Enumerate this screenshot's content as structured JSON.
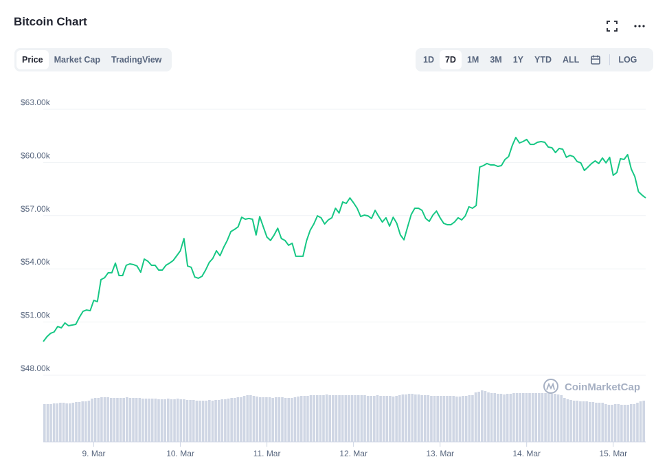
{
  "header": {
    "title": "Bitcoin Chart",
    "fullscreen_icon": "fullscreen-icon",
    "more_icon": "more-horizontal-icon"
  },
  "view_tabs": [
    {
      "label": "Price",
      "active": true
    },
    {
      "label": "Market Cap",
      "active": false
    },
    {
      "label": "TradingView",
      "active": false
    }
  ],
  "range_tabs": [
    {
      "label": "1D",
      "active": false
    },
    {
      "label": "7D",
      "active": true
    },
    {
      "label": "1M",
      "active": false
    },
    {
      "label": "3M",
      "active": false
    },
    {
      "label": "1Y",
      "active": false
    },
    {
      "label": "YTD",
      "active": false
    },
    {
      "label": "ALL",
      "active": false
    }
  ],
  "calendar_icon": "calendar-icon",
  "log_label": "LOG",
  "watermark": "CoinMarketCap",
  "colors": {
    "line": "#16c784",
    "volume": "#cfd6e4",
    "grid": "#eff2f5",
    "text": "#58667e"
  },
  "chart_data": {
    "type": "line",
    "title": "",
    "xlabel": "",
    "ylabel": "",
    "ylim": [
      48000,
      63000
    ],
    "y_ticks": [
      {
        "v": 63000,
        "label": "$63.00k"
      },
      {
        "v": 60000,
        "label": "$60.00k"
      },
      {
        "v": 57000,
        "label": "$57.00k"
      },
      {
        "v": 54000,
        "label": "$54.00k"
      },
      {
        "v": 51000,
        "label": "$51.00k"
      },
      {
        "v": 48000,
        "label": "$48.00k"
      }
    ],
    "x_range": [
      "2021-03-08T10:00",
      "2021-03-15T09:00"
    ],
    "x_ticks": [
      {
        "t": "2021-03-09T00:00",
        "label": "9. Mar"
      },
      {
        "t": "2021-03-10T00:00",
        "label": "10. Mar"
      },
      {
        "t": "2021-03-11T00:00",
        "label": "11. Mar"
      },
      {
        "t": "2021-03-12T00:00",
        "label": "12. Mar"
      },
      {
        "t": "2021-03-13T00:00",
        "label": "13. Mar"
      },
      {
        "t": "2021-03-14T00:00",
        "label": "14. Mar"
      },
      {
        "t": "2021-03-15T00:00",
        "label": "15. Mar"
      }
    ],
    "grid": true,
    "price": [
      49900,
      50170,
      50360,
      50440,
      50750,
      50670,
      50950,
      50790,
      50830,
      50870,
      51260,
      51600,
      51680,
      51640,
      52220,
      52150,
      53390,
      53500,
      53780,
      53780,
      54320,
      53620,
      53620,
      54200,
      54280,
      54240,
      54160,
      53810,
      54550,
      54430,
      54200,
      54200,
      53930,
      53930,
      54200,
      54320,
      54470,
      54740,
      55020,
      55710,
      54160,
      54090,
      53540,
      53470,
      53580,
      53930,
      54360,
      54590,
      55020,
      54740,
      55210,
      55600,
      56100,
      56220,
      56370,
      56910,
      56800,
      56840,
      56800,
      55910,
      56950,
      56370,
      55790,
      55600,
      55910,
      56290,
      55710,
      55600,
      55330,
      55440,
      54710,
      54710,
      54710,
      55600,
      56180,
      56530,
      56990,
      56880,
      56530,
      56760,
      56880,
      57420,
      57150,
      57770,
      57690,
      58000,
      57730,
      57420,
      56950,
      57030,
      56990,
      56840,
      57300,
      56950,
      56640,
      56880,
      56410,
      56910,
      56570,
      55910,
      55640,
      56370,
      57070,
      57420,
      57420,
      57300,
      56840,
      56680,
      57030,
      57260,
      56880,
      56570,
      56490,
      56490,
      56640,
      56880,
      56760,
      56990,
      57500,
      57420,
      57570,
      59740,
      59820,
      59940,
      59860,
      59860,
      59780,
      59820,
      60170,
      60330,
      60950,
      61410,
      61100,
      61180,
      61300,
      61020,
      61020,
      61140,
      61180,
      61140,
      60870,
      60830,
      60560,
      60790,
      60750,
      60290,
      60400,
      60330,
      60050,
      59980,
      59550,
      59740,
      59940,
      60090,
      59940,
      60250,
      59980,
      60290,
      59280,
      59430,
      60210,
      60170,
      60440,
      59630,
      59200,
      58350,
      58160,
      58000
    ],
    "volume_relative": [
      55,
      55,
      55,
      56,
      56,
      57,
      57,
      56,
      56,
      57,
      58,
      58,
      59,
      59,
      60,
      63,
      64,
      64,
      65,
      65,
      65,
      64,
      64,
      64,
      64,
      64,
      65,
      64,
      64,
      64,
      64,
      63,
      63,
      63,
      63,
      63,
      62,
      62,
      62,
      63,
      62,
      62,
      63,
      62,
      62,
      61,
      61,
      61,
      60,
      60,
      60,
      60,
      61,
      60,
      61,
      61,
      62,
      62,
      63,
      64,
      64,
      65,
      65,
      67,
      68,
      68,
      67,
      66,
      65,
      65,
      65,
      65,
      64,
      65,
      65,
      65,
      64,
      64,
      64,
      65,
      66,
      67,
      67,
      67,
      68,
      68,
      68,
      68,
      68,
      69,
      68,
      68,
      68,
      68,
      68,
      68,
      68,
      68,
      68,
      68,
      68,
      68,
      67,
      67,
      67,
      68,
      67,
      67,
      67,
      67,
      66,
      67,
      68,
      69,
      69,
      70,
      70,
      69,
      69,
      68,
      68,
      68,
      67,
      67,
      67,
      67,
      67,
      67,
      67,
      67,
      66,
      66,
      67,
      67,
      68,
      68,
      72,
      73,
      75,
      74,
      72,
      71,
      71,
      70,
      70,
      69,
      70,
      70,
      71,
      71,
      71,
      71,
      71,
      71,
      71,
      71,
      71,
      71,
      71,
      71,
      70,
      70,
      69,
      68,
      64,
      62,
      61,
      60,
      60,
      59,
      59,
      59,
      58,
      58,
      57,
      57,
      57,
      55,
      54,
      54,
      55,
      55,
      54,
      54,
      54,
      55,
      55,
      57,
      59,
      60
    ]
  }
}
